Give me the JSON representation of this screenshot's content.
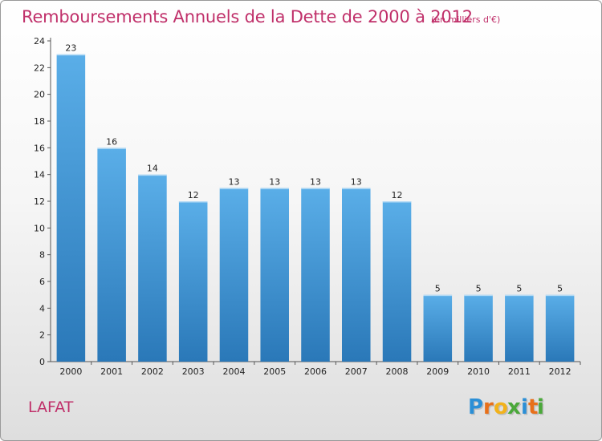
{
  "chart_data": {
    "type": "bar",
    "title": "Remboursements Annuels de la Dette de 2000 à 2012",
    "unit_note": "(en milliers d'€)",
    "categories": [
      "2000",
      "2001",
      "2002",
      "2003",
      "2004",
      "2005",
      "2006",
      "2007",
      "2008",
      "2009",
      "2010",
      "2011",
      "2012"
    ],
    "values": [
      23,
      16,
      14,
      12,
      13,
      13,
      13,
      13,
      12,
      5,
      5,
      5,
      5
    ],
    "xlabel": "",
    "ylabel": "",
    "ylim": [
      0,
      24
    ],
    "yticks": [
      0,
      2,
      4,
      6,
      8,
      10,
      12,
      14,
      16,
      18,
      20,
      22,
      24
    ],
    "grid": false,
    "legend": "none",
    "bar_color": "#5aaee8",
    "bar_color_dark": "#2a78b8"
  },
  "commune": "LAFAT",
  "brand": {
    "letters": [
      "P",
      "r",
      "o",
      "x",
      "i",
      "t",
      "i"
    ],
    "colors": [
      "#2b8fd6",
      "#e8701a",
      "#f2b21b",
      "#4aa83a",
      "#2b8fd6",
      "#e8701a",
      "#4aa83a"
    ]
  },
  "colors": {
    "title": "#c0306a",
    "axis": "#555555"
  }
}
